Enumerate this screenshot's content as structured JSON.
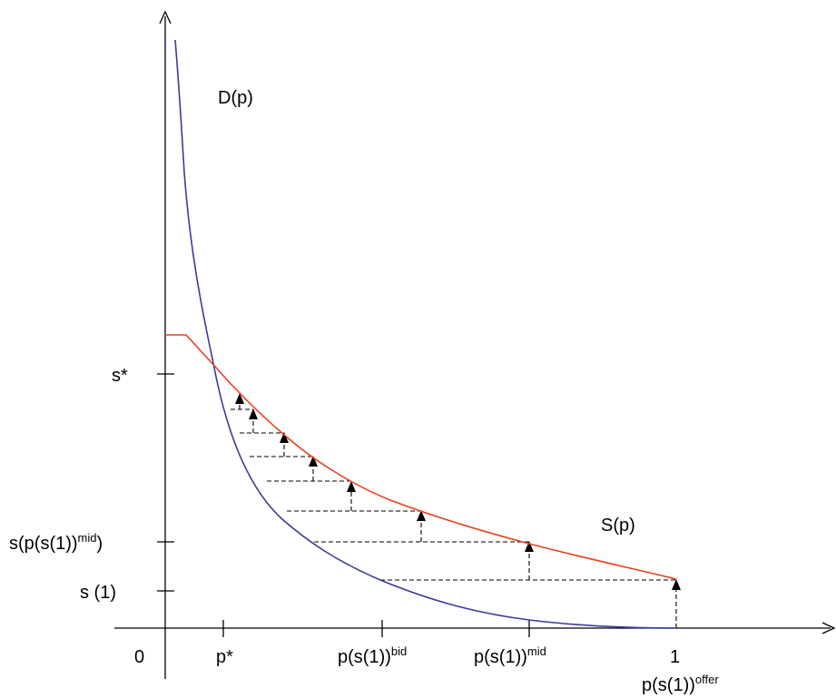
{
  "labels": {
    "demand": "D(p)",
    "supply": "S(p)",
    "origin": "0",
    "x_one": "1"
  },
  "y_ticks": {
    "s_star": "s*",
    "s_mid_base": "s(p(s(1))",
    "s_mid_sup": "mid",
    "s_mid_close": ")",
    "s_one": "s (1)"
  },
  "x_ticks": {
    "p_star": "p*",
    "p_bid_base": "p(s(1))",
    "p_bid_sup": "bid",
    "p_mid_base": "p(s(1))",
    "p_mid_sup": "mid",
    "p_offer_base": "p(s(1))",
    "p_offer_sup": "offer"
  },
  "colors": {
    "demand": "#3b3b9c",
    "supply": "#e8401c",
    "axes": "#000000",
    "steps": "#000000"
  }
}
